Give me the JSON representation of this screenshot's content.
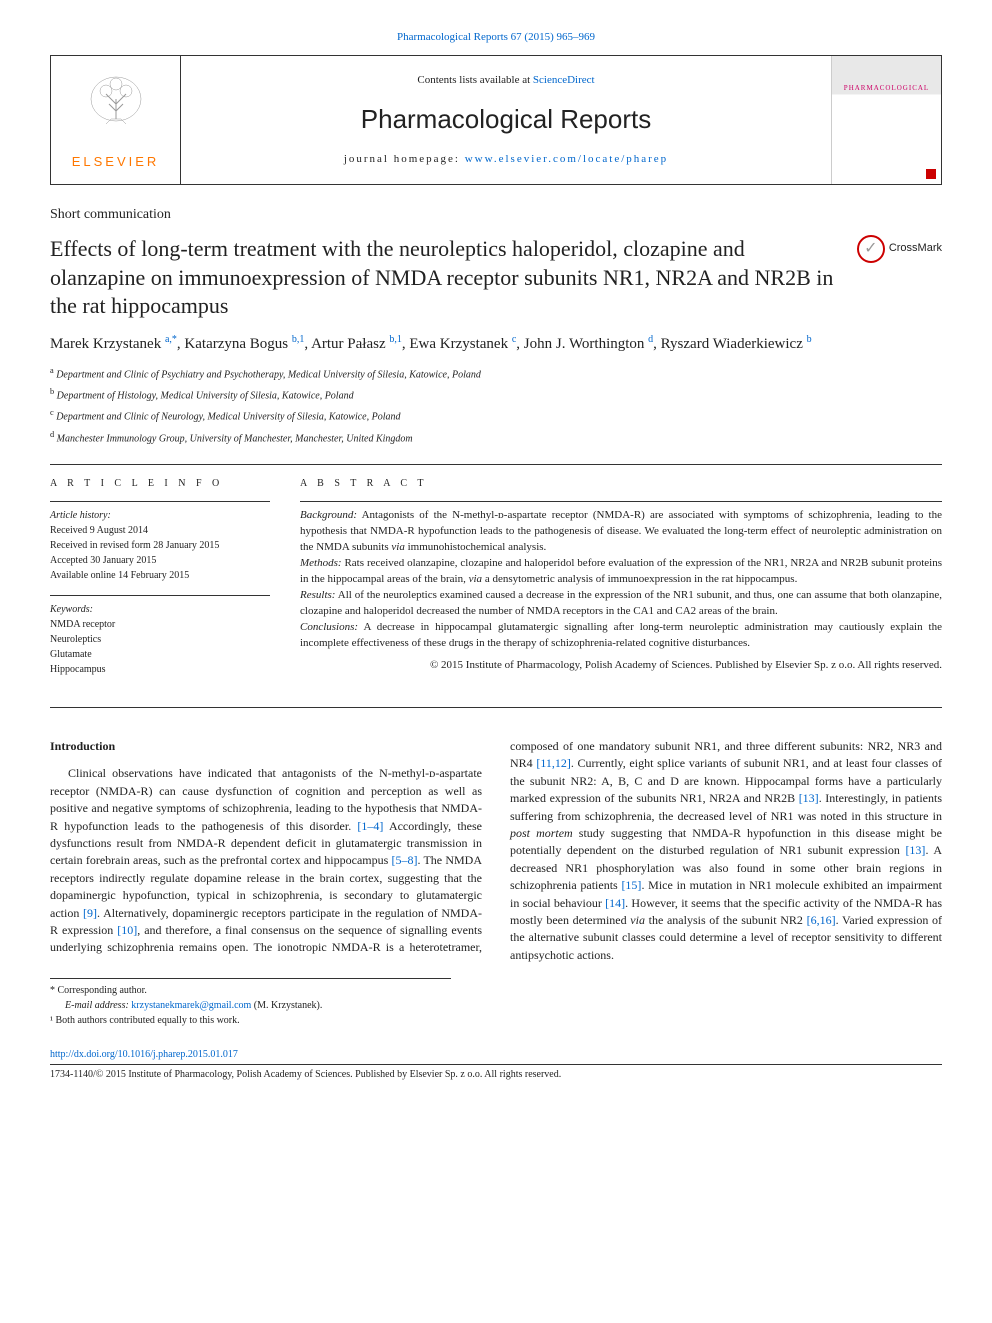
{
  "citation": "Pharmacological Reports 67 (2015) 965–969",
  "header": {
    "contents_prefix": "Contents lists available at ",
    "contents_link": "ScienceDirect",
    "journal_name": "Pharmacological Reports",
    "homepage_prefix": "journal homepage: ",
    "homepage_link": "www.elsevier.com/locate/pharep",
    "elsevier": "ELSEVIER",
    "cover_label": "PHARMACOLOGICAL"
  },
  "article_type": "Short communication",
  "title": "Effects of long-term treatment with the neuroleptics haloperidol, clozapine and olanzapine on immunoexpression of NMDA receptor subunits NR1, NR2A and NR2B in the rat hippocampus",
  "crossmark": "CrossMark",
  "authors_html": "Marek Krzystanek <sup>a,*</sup>, Katarzyna Bogus <sup>b,1</sup>, Artur Pałasz <sup>b,1</sup>, Ewa Krzystanek <sup>c</sup>, John J. Worthington <sup>d</sup>, Ryszard Wiaderkiewicz <sup>b</sup>",
  "affiliations": [
    {
      "sup": "a",
      "text": "Department and Clinic of Psychiatry and Psychotherapy, Medical University of Silesia, Katowice, Poland"
    },
    {
      "sup": "b",
      "text": "Department of Histology, Medical University of Silesia, Katowice, Poland"
    },
    {
      "sup": "c",
      "text": "Department and Clinic of Neurology, Medical University of Silesia, Katowice, Poland"
    },
    {
      "sup": "d",
      "text": "Manchester Immunology Group, University of Manchester, Manchester, United Kingdom"
    }
  ],
  "info": {
    "heading": "A R T I C L E   I N F O",
    "history_label": "Article history:",
    "history": [
      "Received 9 August 2014",
      "Received in revised form 28 January 2015",
      "Accepted 30 January 2015",
      "Available online 14 February 2015"
    ],
    "keywords_label": "Keywords:",
    "keywords": [
      "NMDA receptor",
      "Neuroleptics",
      "Glutamate",
      "Hippocampus"
    ]
  },
  "abstract": {
    "heading": "A B S T R A C T",
    "background_label": "Background:",
    "background": " Antagonists of the N-methyl-ᴅ-aspartate receptor (NMDA-R) are associated with symptoms of schizophrenia, leading to the hypothesis that NMDA-R hypofunction leads to the pathogenesis of disease. We evaluated the long-term effect of neuroleptic administration on the NMDA subunits via immunohistochemical analysis.",
    "methods_label": "Methods:",
    "methods": " Rats received olanzapine, clozapine and haloperidol before evaluation of the expression of the NR1, NR2A and NR2B subunit proteins in the hippocampal areas of the brain, via a densytometric analysis of immunoexpression in the rat hippocampus.",
    "results_label": "Results:",
    "results": " All of the neuroleptics examined caused a decrease in the expression of the NR1 subunit, and thus, one can assume that both olanzapine, clozapine and haloperidol decreased the number of NMDA receptors in the CA1 and CA2 areas of the brain.",
    "conclusions_label": "Conclusions:",
    "conclusions": " A decrease in hippocampal glutamatergic signalling after long-term neuroleptic administration may cautiously explain the incomplete effectiveness of these drugs in the therapy of schizophrenia-related cognitive disturbances.",
    "copyright": "© 2015 Institute of Pharmacology, Polish Academy of Sciences. Published by Elsevier Sp. z o.o. All rights reserved."
  },
  "body": {
    "intro_heading": "Introduction",
    "col1": "Clinical observations have indicated that antagonists of the N-methyl-ᴅ-aspartate receptor (NMDA-R) can cause dysfunction of cognition and perception as well as positive and negative symptoms of schizophrenia, leading to the hypothesis that NMDA-R hypofunction leads to the pathogenesis of this disorder. [1–4] Accordingly, these dysfunctions result from NMDA-R dependent deficit in glutamatergic transmission in certain forebrain areas, such as the prefrontal cortex and hippocampus [5–8]. The NMDA receptors indirectly regulate dopamine release in the brain cortex, suggesting that the dopaminergic hypofunction, typical in schizophrenia, is secondary to glutamatergic action [9]. Alternatively, dopaminergic receptors participate in the regulation of",
    "col2": "NMDA-R expression [10], and therefore, a final consensus on the sequence of signalling events underlying schizophrenia remains open. The ionotropic NMDA-R is a heterotetramer, composed of one mandatory subunit NR1, and three different subunits: NR2, NR3 and NR4 [11,12]. Currently, eight splice variants of subunit NR1, and at least four classes of the subunit NR2: A, B, C and D are known. Hippocampal forms have a particularly marked expression of the subunits NR1, NR2A and NR2B [13]. Interestingly, in patients suffering from schizophrenia, the decreased level of NR1 was noted in this structure in post mortem study suggesting that NMDA-R hypofunction in this disease might be potentially dependent on the disturbed regulation of NR1 subunit expression [13]. A decreased NR1 phosphorylation was also found in some other brain regions in schizophrenia patients [15]. Mice in mutation in NR1 molecule exhibited an impairment in social behaviour [14]. However, it seems that the specific activity of the NMDA-R has mostly been determined via the analysis of the subunit NR2 [6,16]. Varied expression of the alternative subunit classes could determine a level of receptor sensitivity to different antipsychotic actions."
  },
  "footnotes": {
    "corresponding": "* Corresponding author.",
    "email_label": "E-mail address: ",
    "email": "krzystanekmarek@gmail.com",
    "email_suffix": " (M. Krzystanek).",
    "equal": "¹ Both authors contributed equally to this work."
  },
  "doi": "http://dx.doi.org/10.1016/j.pharep.2015.01.017",
  "bottom_copyright": "1734-1140/© 2015 Institute of Pharmacology, Polish Academy of Sciences. Published by Elsevier Sp. z o.o. All rights reserved.",
  "refs": {
    "r1": "[1–4]",
    "r5": "[5–8]",
    "r9": "[9]",
    "r10": "[10]",
    "r11": "[11,12]",
    "r13a": "[13]",
    "r13b": "[13]",
    "r15": "[15]",
    "r14": "[14]",
    "r6": "[6,16]"
  }
}
